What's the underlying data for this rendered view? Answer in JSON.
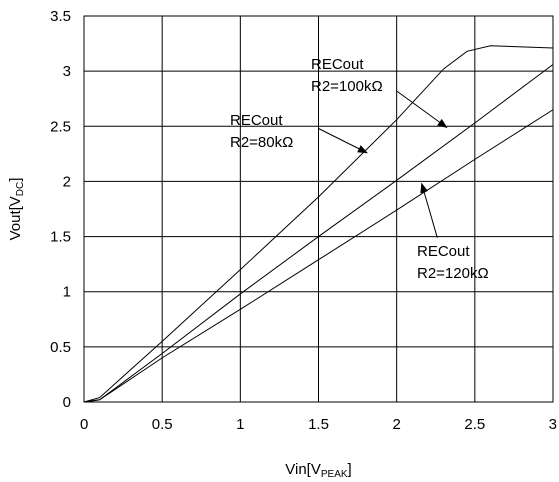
{
  "chart_data": {
    "type": "line",
    "xlabel": {
      "main": "Vin[V",
      "sub": "PEAK",
      "end": "]"
    },
    "ylabel": {
      "main": "Vout[V",
      "sub": "DC",
      "end": "]"
    },
    "xlim": [
      0,
      3
    ],
    "ylim": [
      0,
      3.5
    ],
    "grid": true,
    "x_ticks": [
      {
        "value": 0,
        "label": "0"
      },
      {
        "value": 0.5,
        "label": "0.5"
      },
      {
        "value": 1,
        "label": "1"
      },
      {
        "value": 1.5,
        "label": "1.5"
      },
      {
        "value": 2,
        "label": "2"
      },
      {
        "value": 2.5,
        "label": "2.5"
      },
      {
        "value": 3,
        "label": "3"
      }
    ],
    "y_ticks": [
      {
        "value": 0,
        "label": "0"
      },
      {
        "value": 0.5,
        "label": "0.5"
      },
      {
        "value": 1,
        "label": "1"
      },
      {
        "value": 1.5,
        "label": "1.5"
      },
      {
        "value": 2,
        "label": "2"
      },
      {
        "value": 2.5,
        "label": "2.5"
      },
      {
        "value": 3,
        "label": "3"
      },
      {
        "value": 3.5,
        "label": "3.5"
      }
    ],
    "series": [
      {
        "name": "RECout R2=80kΩ",
        "x": [
          0,
          0.1,
          0.5,
          1.0,
          1.5,
          2.0,
          2.3,
          2.45,
          2.6,
          2.8,
          3.0
        ],
        "y": [
          0,
          0.04,
          0.55,
          1.2,
          1.86,
          2.56,
          3.02,
          3.18,
          3.23,
          3.22,
          3.21
        ]
      },
      {
        "name": "RECout R2=100kΩ",
        "x": [
          0,
          0.1,
          0.5,
          1.0,
          1.5,
          2.0,
          2.5,
          3.0
        ],
        "y": [
          0,
          0.02,
          0.44,
          0.98,
          1.5,
          2.01,
          2.53,
          3.06
        ]
      },
      {
        "name": "RECout R2=120kΩ",
        "x": [
          0,
          0.1,
          0.5,
          1.0,
          1.5,
          2.0,
          2.5,
          3.0
        ],
        "y": [
          0,
          0.02,
          0.4,
          0.84,
          1.29,
          1.74,
          2.2,
          2.65
        ]
      }
    ],
    "annotations": [
      {
        "line1": "RECout",
        "line2": "R2=100kΩ",
        "arrow_to": [
          2.32,
          2.49
        ],
        "arrow_from": [
          2.0,
          2.82
        ]
      },
      {
        "line1": "RECout",
        "line2": "R2=80kΩ",
        "arrow_to": [
          1.81,
          2.26
        ],
        "arrow_from": [
          1.5,
          2.48
        ]
      },
      {
        "line1": "RECout",
        "line2": "R2=120kΩ",
        "arrow_to": [
          2.16,
          1.98
        ],
        "arrow_from": [
          2.26,
          1.49
        ]
      }
    ]
  }
}
